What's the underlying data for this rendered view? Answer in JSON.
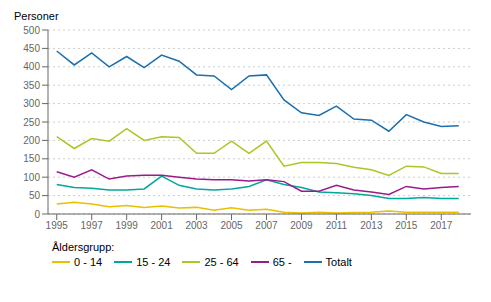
{
  "chart_data": {
    "type": "line",
    "ylabel": "Personer",
    "xlabel": "Åldersgrupp:",
    "x": [
      1995,
      1996,
      1997,
      1998,
      1999,
      2000,
      2001,
      2002,
      2003,
      2004,
      2005,
      2006,
      2007,
      2008,
      2009,
      2010,
      2011,
      2012,
      2013,
      2014,
      2015,
      2016,
      2017,
      2018
    ],
    "series": [
      {
        "name": "0 - 14",
        "color": "#e8c000",
        "values": [
          27,
          32,
          27,
          20,
          23,
          18,
          22,
          16,
          18,
          10,
          17,
          10,
          13,
          5,
          3,
          5,
          3,
          4,
          5,
          8,
          5,
          5,
          5,
          5
        ]
      },
      {
        "name": "15 - 24",
        "color": "#00a89a",
        "values": [
          80,
          72,
          70,
          65,
          65,
          68,
          103,
          78,
          68,
          65,
          68,
          75,
          93,
          80,
          72,
          60,
          58,
          55,
          50,
          42,
          42,
          45,
          42,
          42
        ]
      },
      {
        "name": "25 - 64",
        "color": "#a8c826",
        "values": [
          210,
          178,
          205,
          198,
          232,
          200,
          210,
          208,
          165,
          165,
          198,
          165,
          198,
          130,
          140,
          140,
          137,
          127,
          120,
          105,
          130,
          128,
          110,
          110
        ]
      },
      {
        "name": "65 -",
        "color": "#9a1a8c",
        "values": [
          115,
          100,
          120,
          95,
          103,
          105,
          105,
          100,
          95,
          93,
          93,
          90,
          93,
          88,
          62,
          62,
          78,
          65,
          60,
          53,
          75,
          68,
          72,
          75
        ]
      },
      {
        "name": "Totalt",
        "color": "#1a6faf",
        "values": [
          443,
          405,
          438,
          400,
          428,
          398,
          432,
          415,
          378,
          375,
          338,
          375,
          378,
          310,
          275,
          268,
          293,
          258,
          255,
          225,
          270,
          250,
          238,
          240
        ]
      }
    ],
    "xlim": [
      1994.5,
      2018.7
    ],
    "xticks": [
      1995,
      1997,
      1999,
      2001,
      2003,
      2005,
      2007,
      2009,
      2011,
      2013,
      2015,
      2017
    ],
    "ylim": [
      0,
      500
    ],
    "yticks": [
      0,
      50,
      100,
      150,
      200,
      250,
      300,
      350,
      400,
      450,
      500
    ],
    "grid": true,
    "legend": "bottom"
  }
}
